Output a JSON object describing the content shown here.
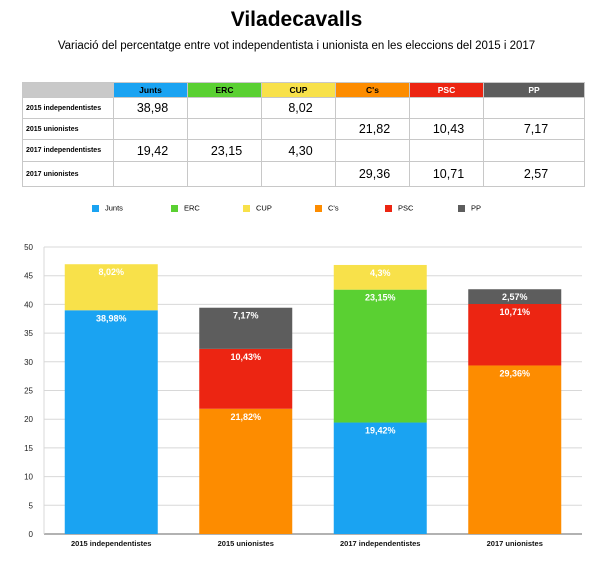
{
  "title": "Viladecavalls",
  "subtitle": "Variació del percentatge entre vot independentista i unionista en les eleccions del 2015 i 2017",
  "colors": {
    "Junts": "#1aa3f2",
    "ERC": "#5ad032",
    "CUP": "#f8e14a",
    "Cs": "#fd8c00",
    "PSC": "#ec2512",
    "PP": "#5d5d5d"
  },
  "table": {
    "columns": [
      "Junts",
      "ERC",
      "CUP",
      "C's",
      "PSC",
      "PP"
    ],
    "rows": [
      {
        "label": "2015 independentistes",
        "cells": [
          "38,98",
          "",
          "8,02",
          "",
          "",
          ""
        ]
      },
      {
        "label": "2015 unionistes",
        "cells": [
          "",
          "",
          "",
          "21,82",
          "10,43",
          "7,17"
        ]
      },
      {
        "label": "2017 independentistes",
        "cells": [
          "19,42",
          "23,15",
          "4,30",
          "",
          "",
          ""
        ]
      },
      {
        "label": "2017 unionistes",
        "cells": [
          "",
          "",
          "",
          "29,36",
          "10,71",
          "2,57"
        ]
      }
    ]
  },
  "legend": [
    "Junts",
    "ERC",
    "CUP",
    "C's",
    "PSC",
    "PP"
  ],
  "chart_data": {
    "type": "bar",
    "stacked": true,
    "categories": [
      "2015 independentistes",
      "2015 unionistes",
      "2017 independentistes",
      "2017 unionistes"
    ],
    "series": [
      {
        "name": "Junts",
        "color": "#1aa3f2",
        "values": [
          38.98,
          0,
          19.42,
          0
        ],
        "labels": [
          "38,98%",
          "",
          "19,42%",
          ""
        ]
      },
      {
        "name": "ERC",
        "color": "#5ad032",
        "values": [
          0,
          0,
          23.15,
          0
        ],
        "labels": [
          "",
          "",
          "23,15%",
          ""
        ]
      },
      {
        "name": "CUP",
        "color": "#f8e14a",
        "values": [
          8.02,
          0,
          4.3,
          0
        ],
        "labels": [
          "8,02%",
          "",
          "4,3%",
          ""
        ]
      },
      {
        "name": "C's",
        "color": "#fd8c00",
        "values": [
          0,
          21.82,
          0,
          29.36
        ],
        "labels": [
          "",
          "21,82%",
          "",
          "29,36%"
        ]
      },
      {
        "name": "PSC",
        "color": "#ec2512",
        "values": [
          0,
          10.43,
          0,
          10.71
        ],
        "labels": [
          "",
          "10,43%",
          "",
          "10,71%"
        ]
      },
      {
        "name": "PP",
        "color": "#5d5d5d",
        "values": [
          0,
          7.17,
          0,
          2.57
        ],
        "labels": [
          "",
          "7,17%",
          "",
          "2,57%"
        ]
      }
    ],
    "ylim": [
      0,
      50
    ],
    "yticks": [
      "0",
      "5",
      "10",
      "15",
      "20",
      "25",
      "30",
      "35",
      "40",
      "45",
      "50"
    ],
    "grid": true,
    "legend_position": "top"
  }
}
